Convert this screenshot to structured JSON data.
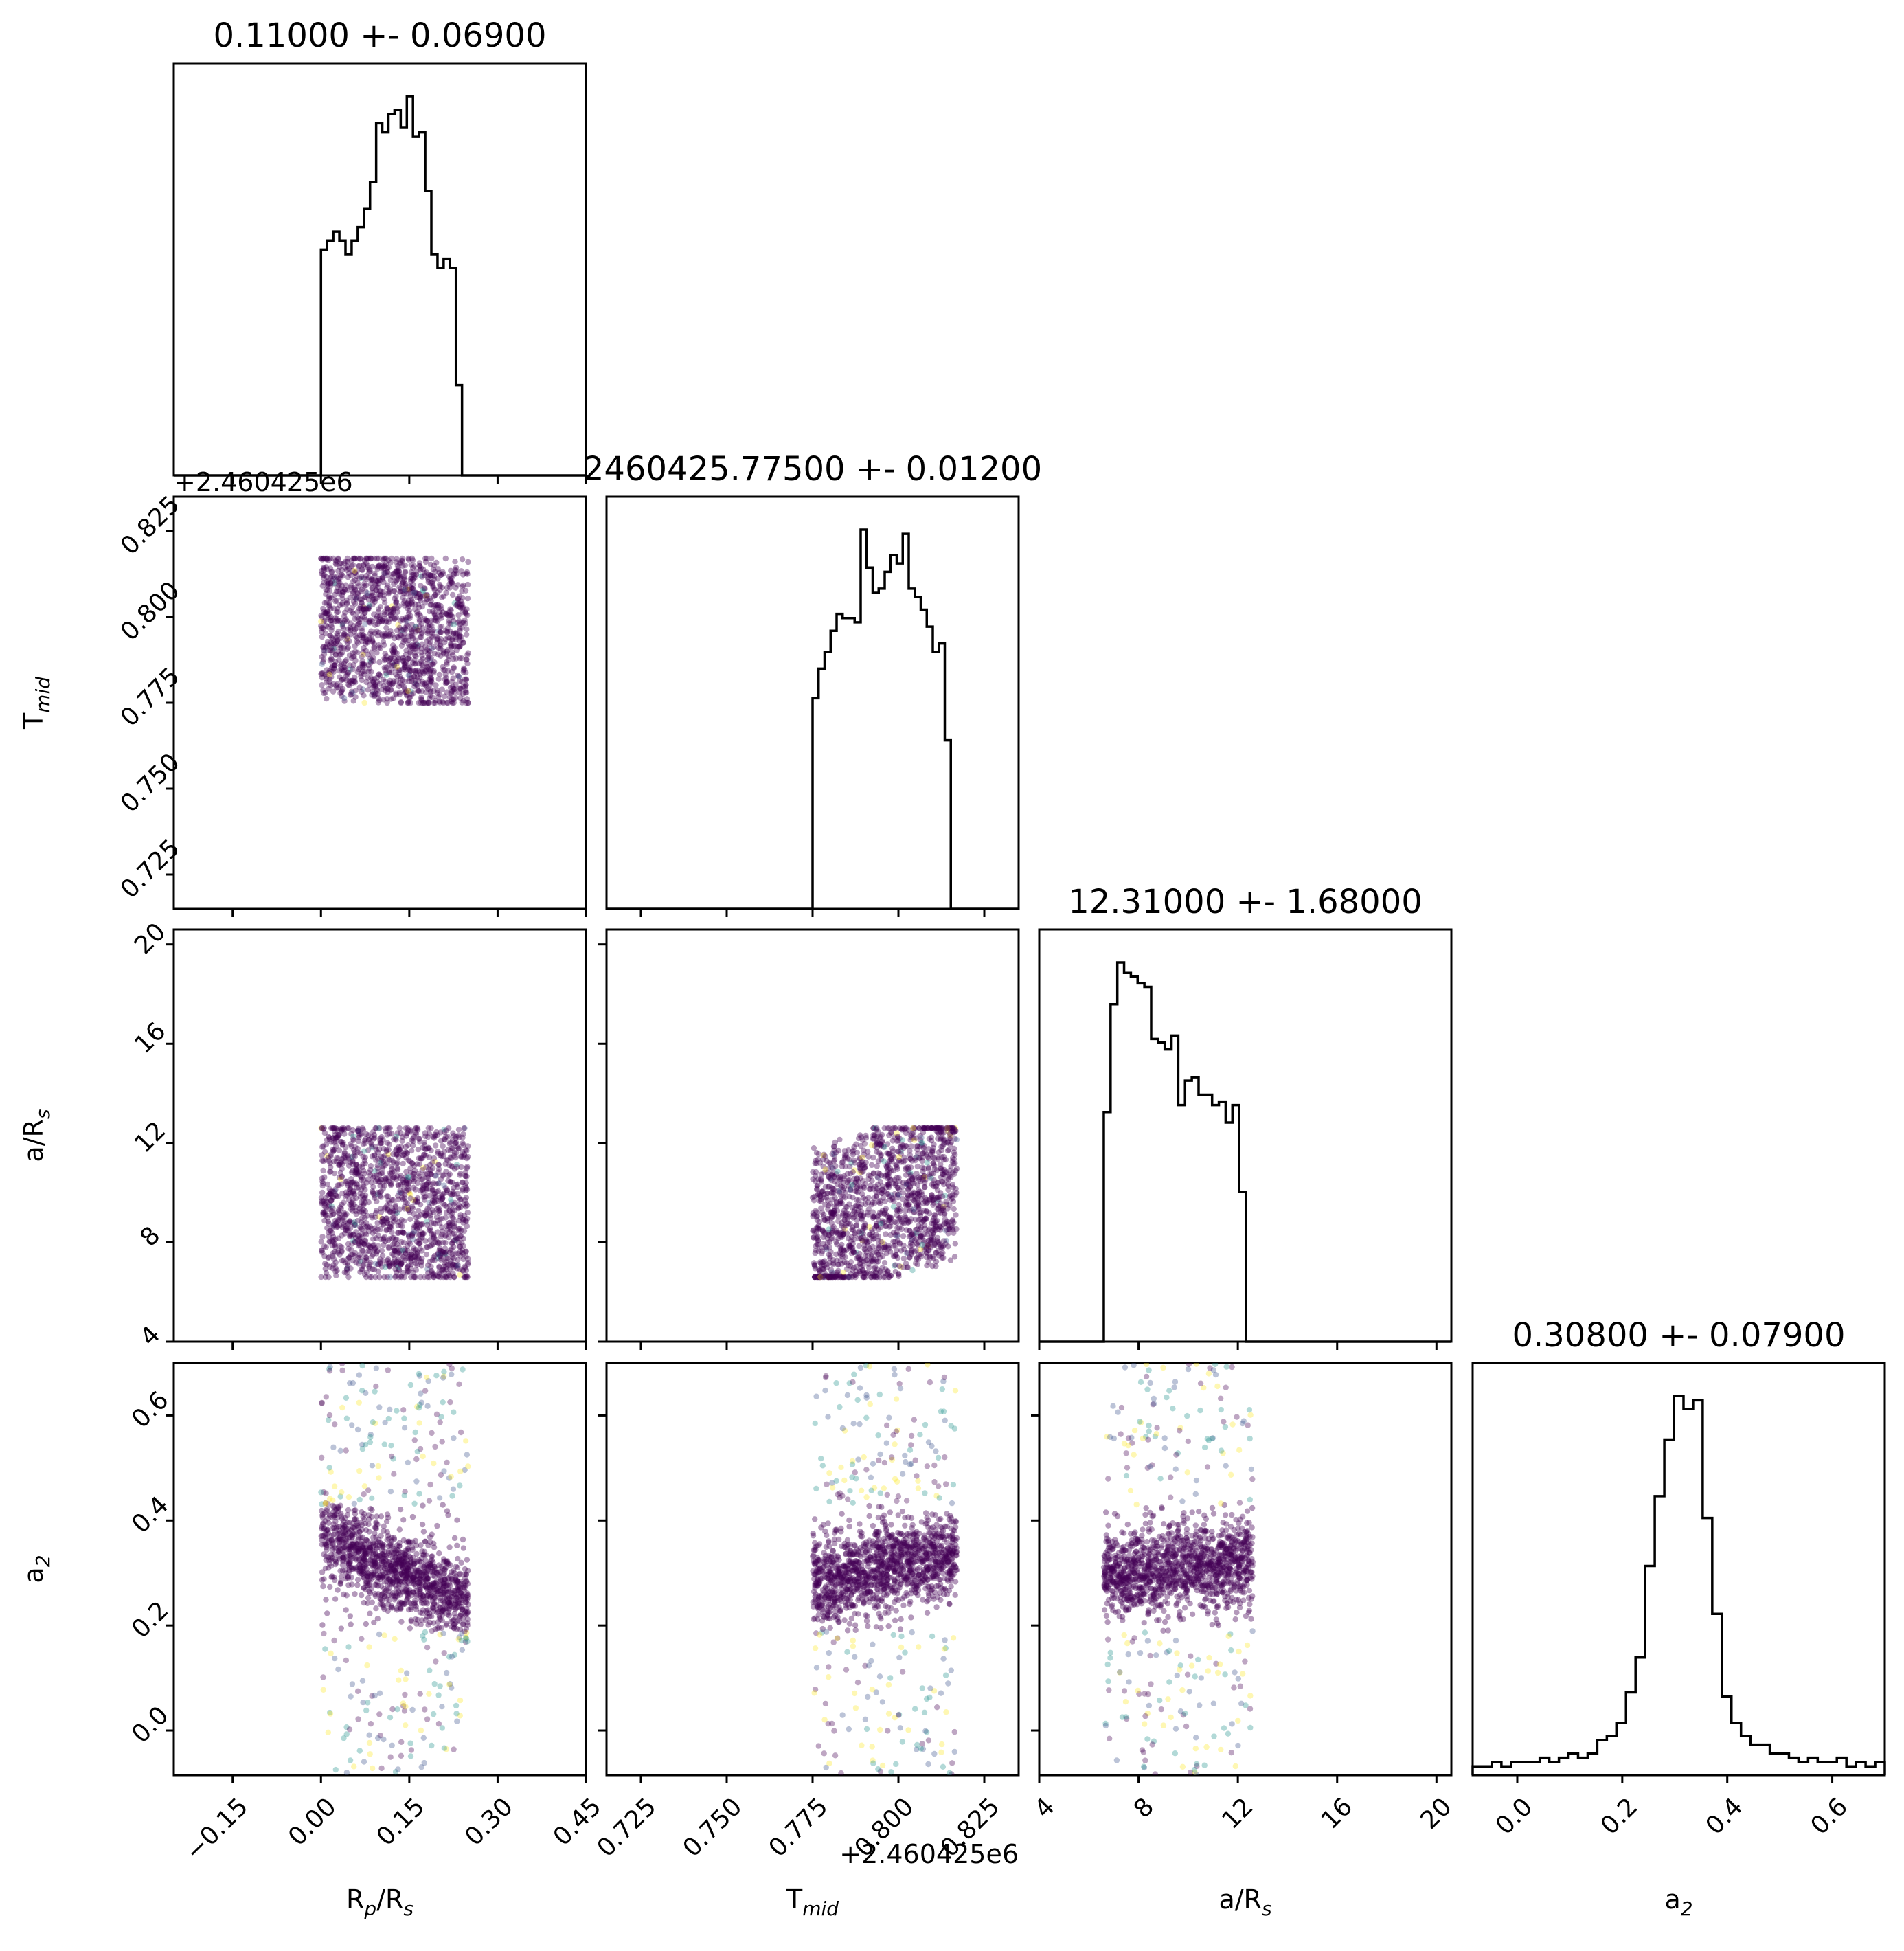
{
  "chart_data": {
    "type": "scatter",
    "layout": "corner",
    "parameters": [
      {
        "name": "Rp/Rs",
        "label": "R_p/R_s",
        "title": "0.11000 +- 0.06900",
        "range": [
          -0.25,
          0.45
        ],
        "ticks": [
          -0.15,
          0.0,
          0.15,
          0.3,
          0.45
        ],
        "tick_labels": [
          "−0.15",
          "0.00",
          "0.15",
          "0.30",
          "0.45"
        ],
        "offset": "",
        "sample_bounds": [
          0.0,
          0.25
        ],
        "hist_edges": [
          0.0,
          0.25
        ],
        "hist_counts": [
          0.5,
          0.52,
          0.54,
          0.52,
          0.49,
          0.52,
          0.55,
          0.59,
          0.65,
          0.78,
          0.76,
          0.8,
          0.81,
          0.77,
          0.84,
          0.75,
          0.76,
          0.63,
          0.49,
          0.46,
          0.48,
          0.46,
          0.2,
          0.0
        ],
        "hist_max": 0.84
      },
      {
        "name": "Tmid",
        "label": "T_mid",
        "title": "2460425.77500 +- 0.01200",
        "range": [
          0.715,
          0.835
        ],
        "ticks": [
          0.725,
          0.75,
          0.775,
          0.8,
          0.825
        ],
        "tick_labels": [
          "0.725",
          "0.750",
          "0.775",
          "0.800",
          "0.825"
        ],
        "offset": "+2.460425e6",
        "sample_bounds": [
          0.775,
          0.817
        ],
        "hist_edges": [
          0.775,
          0.817
        ],
        "hist_counts": [
          0.5,
          0.57,
          0.61,
          0.66,
          0.7,
          0.69,
          0.69,
          0.68,
          0.9,
          0.81,
          0.75,
          0.76,
          0.8,
          0.84,
          0.82,
          0.89,
          0.76,
          0.74,
          0.71,
          0.67,
          0.61,
          0.63,
          0.4,
          0.0
        ],
        "hist_max": 0.9
      },
      {
        "name": "a/Rs",
        "label": "a/R_s",
        "title": "12.31000 +- 1.68000",
        "range": [
          4,
          20.6
        ],
        "ticks": [
          4,
          8,
          12,
          16,
          20
        ],
        "tick_labels": [
          "4",
          "8",
          "12",
          "16",
          "20"
        ],
        "offset": "",
        "sample_bounds": [
          6.6,
          12.6
        ],
        "hist_edges": [
          6.6,
          12.6
        ],
        "hist_counts": [
          0.66,
          0.97,
          1.09,
          1.06,
          1.05,
          1.03,
          1.02,
          0.87,
          0.86,
          0.84,
          0.88,
          0.68,
          0.75,
          0.76,
          0.71,
          0.71,
          0.68,
          0.69,
          0.63,
          0.68,
          0.43,
          0.0
        ],
        "hist_max": 1.09
      },
      {
        "name": "a2",
        "label": "a_2",
        "title": "0.30800 +- 0.07900",
        "range": [
          -0.085,
          0.7
        ],
        "ticks": [
          0.0,
          0.2,
          0.4,
          0.6
        ],
        "tick_labels": [
          "0.0",
          "0.2",
          "0.4",
          "0.6"
        ],
        "offset": "",
        "sample_bounds": [
          -0.085,
          0.7
        ],
        "hist_edges": [
          -0.085,
          0.7
        ],
        "hist_counts": [
          0.02,
          0.02,
          0.03,
          0.02,
          0.03,
          0.03,
          0.03,
          0.04,
          0.03,
          0.04,
          0.05,
          0.04,
          0.05,
          0.08,
          0.09,
          0.12,
          0.19,
          0.27,
          0.48,
          0.64,
          0.77,
          0.87,
          0.84,
          0.86,
          0.59,
          0.37,
          0.18,
          0.12,
          0.09,
          0.07,
          0.07,
          0.05,
          0.05,
          0.04,
          0.03,
          0.04,
          0.03,
          0.03,
          0.04,
          0.02,
          0.03,
          0.02,
          0.03
        ],
        "hist_max": 0.87
      }
    ],
    "correlations": [
      {
        "row": 1,
        "col": 0,
        "rho": -0.15
      },
      {
        "row": 2,
        "col": 0,
        "rho": -0.15
      },
      {
        "row": 2,
        "col": 1,
        "rho": 0.55
      },
      {
        "row": 3,
        "col": 0,
        "rho": -0.55
      },
      {
        "row": 3,
        "col": 1,
        "rho": 0.25
      },
      {
        "row": 3,
        "col": 2,
        "rho": 0.15
      }
    ],
    "n_samples": 3000,
    "colormap": "viridis",
    "colors": {
      "dense": "#440154",
      "mid": "#3b528b",
      "light": "#21918c",
      "rare": "#fde725",
      "frame": "#000000"
    },
    "grid": false,
    "legend": "none"
  }
}
